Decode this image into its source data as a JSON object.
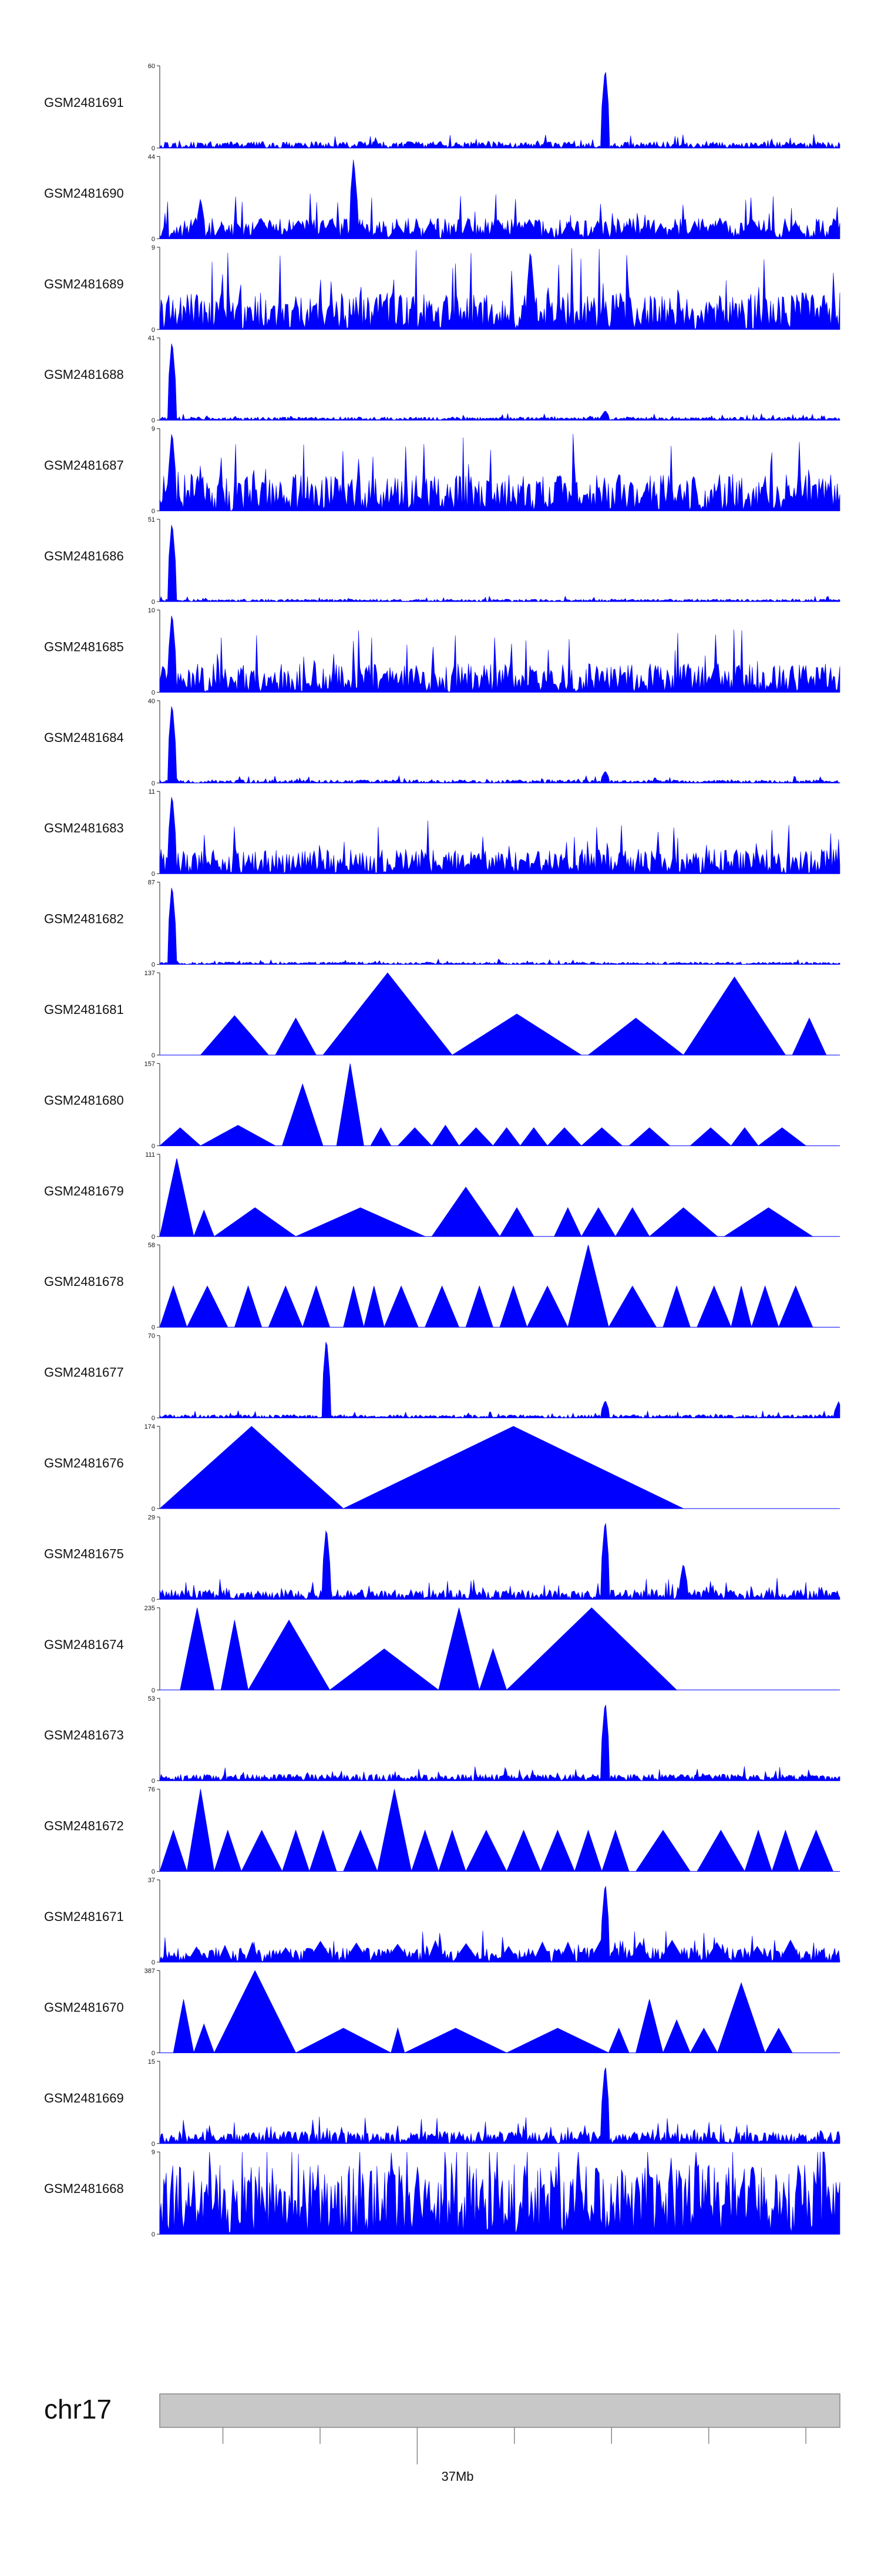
{
  "colors": {
    "signal": "#0000ff",
    "axis": "#444444",
    "label": "#111111",
    "ideogram_fill": "#c8c8c8",
    "ideogram_stroke": "#888888"
  },
  "chart_data": {
    "type": "area",
    "title": "",
    "chromosome": "chr17",
    "x_axis": {
      "tick_label": "37Mb",
      "tick_count": 7
    },
    "tracks": [
      {
        "name": "GSM2481691",
        "ymax": 60,
        "ymin": 0,
        "style": "noise",
        "base": 0.08,
        "peaks": [
          [
            0.655,
            1.0
          ]
        ]
      },
      {
        "name": "GSM2481690",
        "ymax": 44,
        "ymin": 0,
        "style": "mixed",
        "base": 0.25,
        "peaks": [
          [
            0.285,
            1.0
          ],
          [
            0.06,
            0.5
          ]
        ]
      },
      {
        "name": "GSM2481689",
        "ymax": 9,
        "ymin": 0,
        "style": "noise",
        "base": 0.45,
        "peaks": [
          [
            0.545,
            1.0
          ]
        ]
      },
      {
        "name": "GSM2481688",
        "ymax": 41,
        "ymin": 0,
        "style": "noise",
        "base": 0.04,
        "peaks": [
          [
            0.018,
            1.0
          ],
          [
            0.655,
            0.12
          ]
        ]
      },
      {
        "name": "GSM2481687",
        "ymax": 9,
        "ymin": 0,
        "style": "noise",
        "base": 0.45,
        "peaks": [
          [
            0.018,
            1.0
          ]
        ]
      },
      {
        "name": "GSM2481686",
        "ymax": 51,
        "ymin": 0,
        "style": "noise",
        "base": 0.03,
        "peaks": [
          [
            0.018,
            1.0
          ]
        ]
      },
      {
        "name": "GSM2481685",
        "ymax": 10,
        "ymin": 0,
        "style": "noise",
        "base": 0.35,
        "peaks": [
          [
            0.018,
            1.0
          ]
        ]
      },
      {
        "name": "GSM2481684",
        "ymax": 40,
        "ymin": 0,
        "style": "noise",
        "base": 0.04,
        "peaks": [
          [
            0.018,
            1.0
          ],
          [
            0.655,
            0.15
          ]
        ]
      },
      {
        "name": "GSM2481683",
        "ymax": 11,
        "ymin": 0,
        "style": "noise",
        "base": 0.3,
        "peaks": [
          [
            0.018,
            1.0
          ]
        ]
      },
      {
        "name": "GSM2481682",
        "ymax": 87,
        "ymin": 0,
        "style": "noise",
        "base": 0.03,
        "peaks": [
          [
            0.018,
            1.0
          ]
        ]
      },
      {
        "name": "GSM2481681",
        "ymax": 137,
        "ymin": 0,
        "style": "tri",
        "triangles": [
          [
            0.06,
            0.16,
            0.48
          ],
          [
            0.17,
            0.23,
            0.45
          ],
          [
            0.24,
            0.43,
            1.0
          ],
          [
            0.43,
            0.62,
            0.5
          ],
          [
            0.63,
            0.77,
            0.45
          ],
          [
            0.77,
            0.92,
            0.95
          ],
          [
            0.93,
            0.98,
            0.45
          ]
        ]
      },
      {
        "name": "GSM2481680",
        "ymax": 157,
        "ymin": 0,
        "style": "tri",
        "triangles": [
          [
            0.0,
            0.06,
            0.22
          ],
          [
            0.06,
            0.17,
            0.25
          ],
          [
            0.18,
            0.24,
            0.75
          ],
          [
            0.26,
            0.3,
            1.0
          ],
          [
            0.31,
            0.34,
            0.22
          ],
          [
            0.35,
            0.4,
            0.22
          ],
          [
            0.4,
            0.44,
            0.25
          ],
          [
            0.44,
            0.49,
            0.22
          ],
          [
            0.49,
            0.53,
            0.22
          ],
          [
            0.53,
            0.57,
            0.22
          ],
          [
            0.57,
            0.62,
            0.22
          ],
          [
            0.62,
            0.68,
            0.22
          ],
          [
            0.69,
            0.75,
            0.22
          ],
          [
            0.78,
            0.84,
            0.22
          ],
          [
            0.84,
            0.88,
            0.22
          ],
          [
            0.88,
            0.95,
            0.22
          ]
        ]
      },
      {
        "name": "GSM2481679",
        "ymax": 111,
        "ymin": 0,
        "style": "tri",
        "triangles": [
          [
            0.0,
            0.05,
            0.95
          ],
          [
            0.05,
            0.08,
            0.32
          ],
          [
            0.08,
            0.2,
            0.35
          ],
          [
            0.2,
            0.39,
            0.35
          ],
          [
            0.4,
            0.5,
            0.6
          ],
          [
            0.5,
            0.55,
            0.35
          ],
          [
            0.58,
            0.62,
            0.35
          ],
          [
            0.62,
            0.67,
            0.35
          ],
          [
            0.67,
            0.72,
            0.35
          ],
          [
            0.72,
            0.82,
            0.35
          ],
          [
            0.83,
            0.96,
            0.35
          ]
        ]
      },
      {
        "name": "GSM2481678",
        "ymax": 58,
        "ymin": 0,
        "style": "tri",
        "triangles": [
          [
            0.0,
            0.04,
            0.5
          ],
          [
            0.04,
            0.1,
            0.5
          ],
          [
            0.11,
            0.15,
            0.5
          ],
          [
            0.16,
            0.21,
            0.5
          ],
          [
            0.21,
            0.25,
            0.5
          ],
          [
            0.27,
            0.3,
            0.5
          ],
          [
            0.3,
            0.33,
            0.5
          ],
          [
            0.33,
            0.38,
            0.5
          ],
          [
            0.39,
            0.44,
            0.5
          ],
          [
            0.45,
            0.49,
            0.5
          ],
          [
            0.5,
            0.54,
            0.5
          ],
          [
            0.54,
            0.6,
            0.5
          ],
          [
            0.6,
            0.66,
            1.0
          ],
          [
            0.66,
            0.73,
            0.5
          ],
          [
            0.74,
            0.78,
            0.5
          ],
          [
            0.79,
            0.84,
            0.5
          ],
          [
            0.84,
            0.87,
            0.5
          ],
          [
            0.87,
            0.91,
            0.5
          ],
          [
            0.91,
            0.96,
            0.5
          ]
        ]
      },
      {
        "name": "GSM2481677",
        "ymax": 70,
        "ymin": 0,
        "style": "noise",
        "base": 0.04,
        "peaks": [
          [
            0.245,
            1.0
          ],
          [
            0.655,
            0.22
          ],
          [
            0.998,
            0.2
          ]
        ]
      },
      {
        "name": "GSM2481676",
        "ymax": 174,
        "ymin": 0,
        "style": "tri",
        "triangles": [
          [
            0.0,
            0.27,
            1.0
          ],
          [
            0.27,
            0.77,
            1.0
          ]
        ]
      },
      {
        "name": "GSM2481675",
        "ymax": 29,
        "ymin": 0,
        "style": "noise",
        "base": 0.12,
        "peaks": [
          [
            0.245,
            0.9
          ],
          [
            0.655,
            1.0
          ],
          [
            0.77,
            0.45
          ]
        ]
      },
      {
        "name": "GSM2481674",
        "ymax": 235,
        "ymin": 0,
        "style": "tri",
        "triangles": [
          [
            0.03,
            0.08,
            1.0
          ],
          [
            0.09,
            0.13,
            0.85
          ],
          [
            0.13,
            0.25,
            0.85
          ],
          [
            0.25,
            0.41,
            0.5
          ],
          [
            0.41,
            0.47,
            1.0
          ],
          [
            0.47,
            0.51,
            0.5
          ],
          [
            0.51,
            0.76,
            1.0
          ]
        ]
      },
      {
        "name": "GSM2481673",
        "ymax": 53,
        "ymin": 0,
        "style": "noise",
        "base": 0.08,
        "peaks": [
          [
            0.655,
            1.0
          ]
        ]
      },
      {
        "name": "GSM2481672",
        "ymax": 76,
        "ymin": 0,
        "style": "tri",
        "triangles": [
          [
            0.0,
            0.04,
            0.5
          ],
          [
            0.04,
            0.08,
            1.0
          ],
          [
            0.08,
            0.12,
            0.5
          ],
          [
            0.12,
            0.18,
            0.5
          ],
          [
            0.18,
            0.22,
            0.5
          ],
          [
            0.22,
            0.26,
            0.5
          ],
          [
            0.27,
            0.32,
            0.5
          ],
          [
            0.32,
            0.37,
            1.0
          ],
          [
            0.37,
            0.41,
            0.5
          ],
          [
            0.41,
            0.45,
            0.5
          ],
          [
            0.45,
            0.51,
            0.5
          ],
          [
            0.51,
            0.56,
            0.5
          ],
          [
            0.56,
            0.61,
            0.5
          ],
          [
            0.61,
            0.65,
            0.5
          ],
          [
            0.65,
            0.69,
            0.5
          ],
          [
            0.7,
            0.78,
            0.5
          ],
          [
            0.79,
            0.86,
            0.5
          ],
          [
            0.86,
            0.9,
            0.5
          ],
          [
            0.9,
            0.94,
            0.5
          ],
          [
            0.94,
            0.99,
            0.5
          ]
        ]
      },
      {
        "name": "GSM2481671",
        "ymax": 37,
        "ymin": 0,
        "style": "mixed",
        "base": 0.18,
        "peaks": [
          [
            0.655,
            1.0
          ]
        ]
      },
      {
        "name": "GSM2481670",
        "ymax": 387,
        "ymin": 0,
        "style": "tri",
        "triangles": [
          [
            0.02,
            0.05,
            0.65
          ],
          [
            0.05,
            0.08,
            0.35
          ],
          [
            0.08,
            0.2,
            1.0
          ],
          [
            0.2,
            0.34,
            0.3
          ],
          [
            0.34,
            0.36,
            0.3
          ],
          [
            0.36,
            0.51,
            0.3
          ],
          [
            0.51,
            0.66,
            0.3
          ],
          [
            0.66,
            0.69,
            0.3
          ],
          [
            0.7,
            0.74,
            0.65
          ],
          [
            0.74,
            0.78,
            0.4
          ],
          [
            0.78,
            0.82,
            0.3
          ],
          [
            0.82,
            0.89,
            0.85
          ],
          [
            0.89,
            0.93,
            0.3
          ]
        ]
      },
      {
        "name": "GSM2481669",
        "ymax": 15,
        "ymin": 0,
        "style": "noise",
        "base": 0.15,
        "peaks": [
          [
            0.655,
            1.0
          ]
        ]
      },
      {
        "name": "GSM2481668",
        "ymax": 9,
        "ymin": 0,
        "style": "noise",
        "base": 0.85,
        "peaks": []
      }
    ]
  }
}
